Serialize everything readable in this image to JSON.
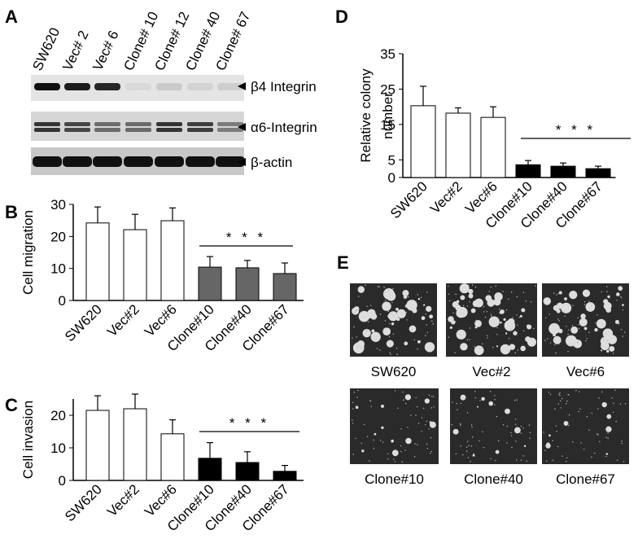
{
  "panel_letters": [
    "A",
    "B",
    "C",
    "D",
    "E"
  ],
  "blot": {
    "lanes": [
      "SW620",
      "Vec# 2",
      "Vec# 6",
      "Clone# 10",
      "Clone# 12",
      "Clone# 40",
      "Clone# 67"
    ],
    "rows": [
      "β4 Integrin",
      "α6-Integrin",
      "β-actin"
    ]
  },
  "chart_data": [
    {
      "type": "bar",
      "y_label": [
        "Cell migration"
      ],
      "categories": [
        "SW620",
        "Vec#2",
        "Vec#6",
        "Clone#10",
        "Clone#40",
        "Clone#67"
      ],
      "values": [
        24.2,
        22.1,
        24.9,
        10.4,
        10.2,
        8.4
      ],
      "errors": [
        5,
        4.8,
        4,
        3.3,
        2.3,
        3.3
      ],
      "colors": [
        "#ffffff",
        "#ffffff",
        "#ffffff",
        "#666666",
        "#666666",
        "#666666"
      ],
      "ylim": [
        0,
        30
      ],
      "yticks": [
        0,
        10,
        20,
        30
      ],
      "annotation": "* * *"
    },
    {
      "type": "bar",
      "y_label": [
        "Cell invasion"
      ],
      "categories": [
        "SW620",
        "Vec#2",
        "Vec#6",
        "Clone#10",
        "Clone#40",
        "Clone#67"
      ],
      "values": [
        21.5,
        22,
        14.3,
        6.8,
        5.5,
        2.8
      ],
      "errors": [
        4.5,
        4.5,
        4.3,
        4.8,
        3.3,
        1.8
      ],
      "colors": [
        "#ffffff",
        "#ffffff",
        "#ffffff",
        "#000000",
        "#000000",
        "#000000"
      ],
      "ylim": [
        0,
        25
      ],
      "yticks": [
        0,
        10,
        20
      ],
      "annotation": "* * *"
    },
    {
      "type": "bar",
      "y_label": [
        "Relative colony",
        "number"
      ],
      "categories": [
        "SW620",
        "Vec#2",
        "Vec#6",
        "Clone#10",
        "Clone#40",
        "Clone#67"
      ],
      "values": [
        20.3,
        18.2,
        17,
        3.6,
        3.2,
        2.5
      ],
      "errors": [
        5.5,
        1.5,
        3,
        1.2,
        0.9,
        0.7
      ],
      "colors": [
        "#ffffff",
        "#ffffff",
        "#ffffff",
        "#000000",
        "#000000",
        "#000000"
      ],
      "ylim": [
        0,
        35
      ],
      "yticks": [
        0,
        5,
        15,
        25,
        35
      ],
      "annotation": "* * *"
    }
  ],
  "images": {
    "labels": [
      "SW620",
      "Vec#2",
      "Vec#6",
      "Clone#10",
      "Clone#40",
      "Clone#67"
    ]
  }
}
